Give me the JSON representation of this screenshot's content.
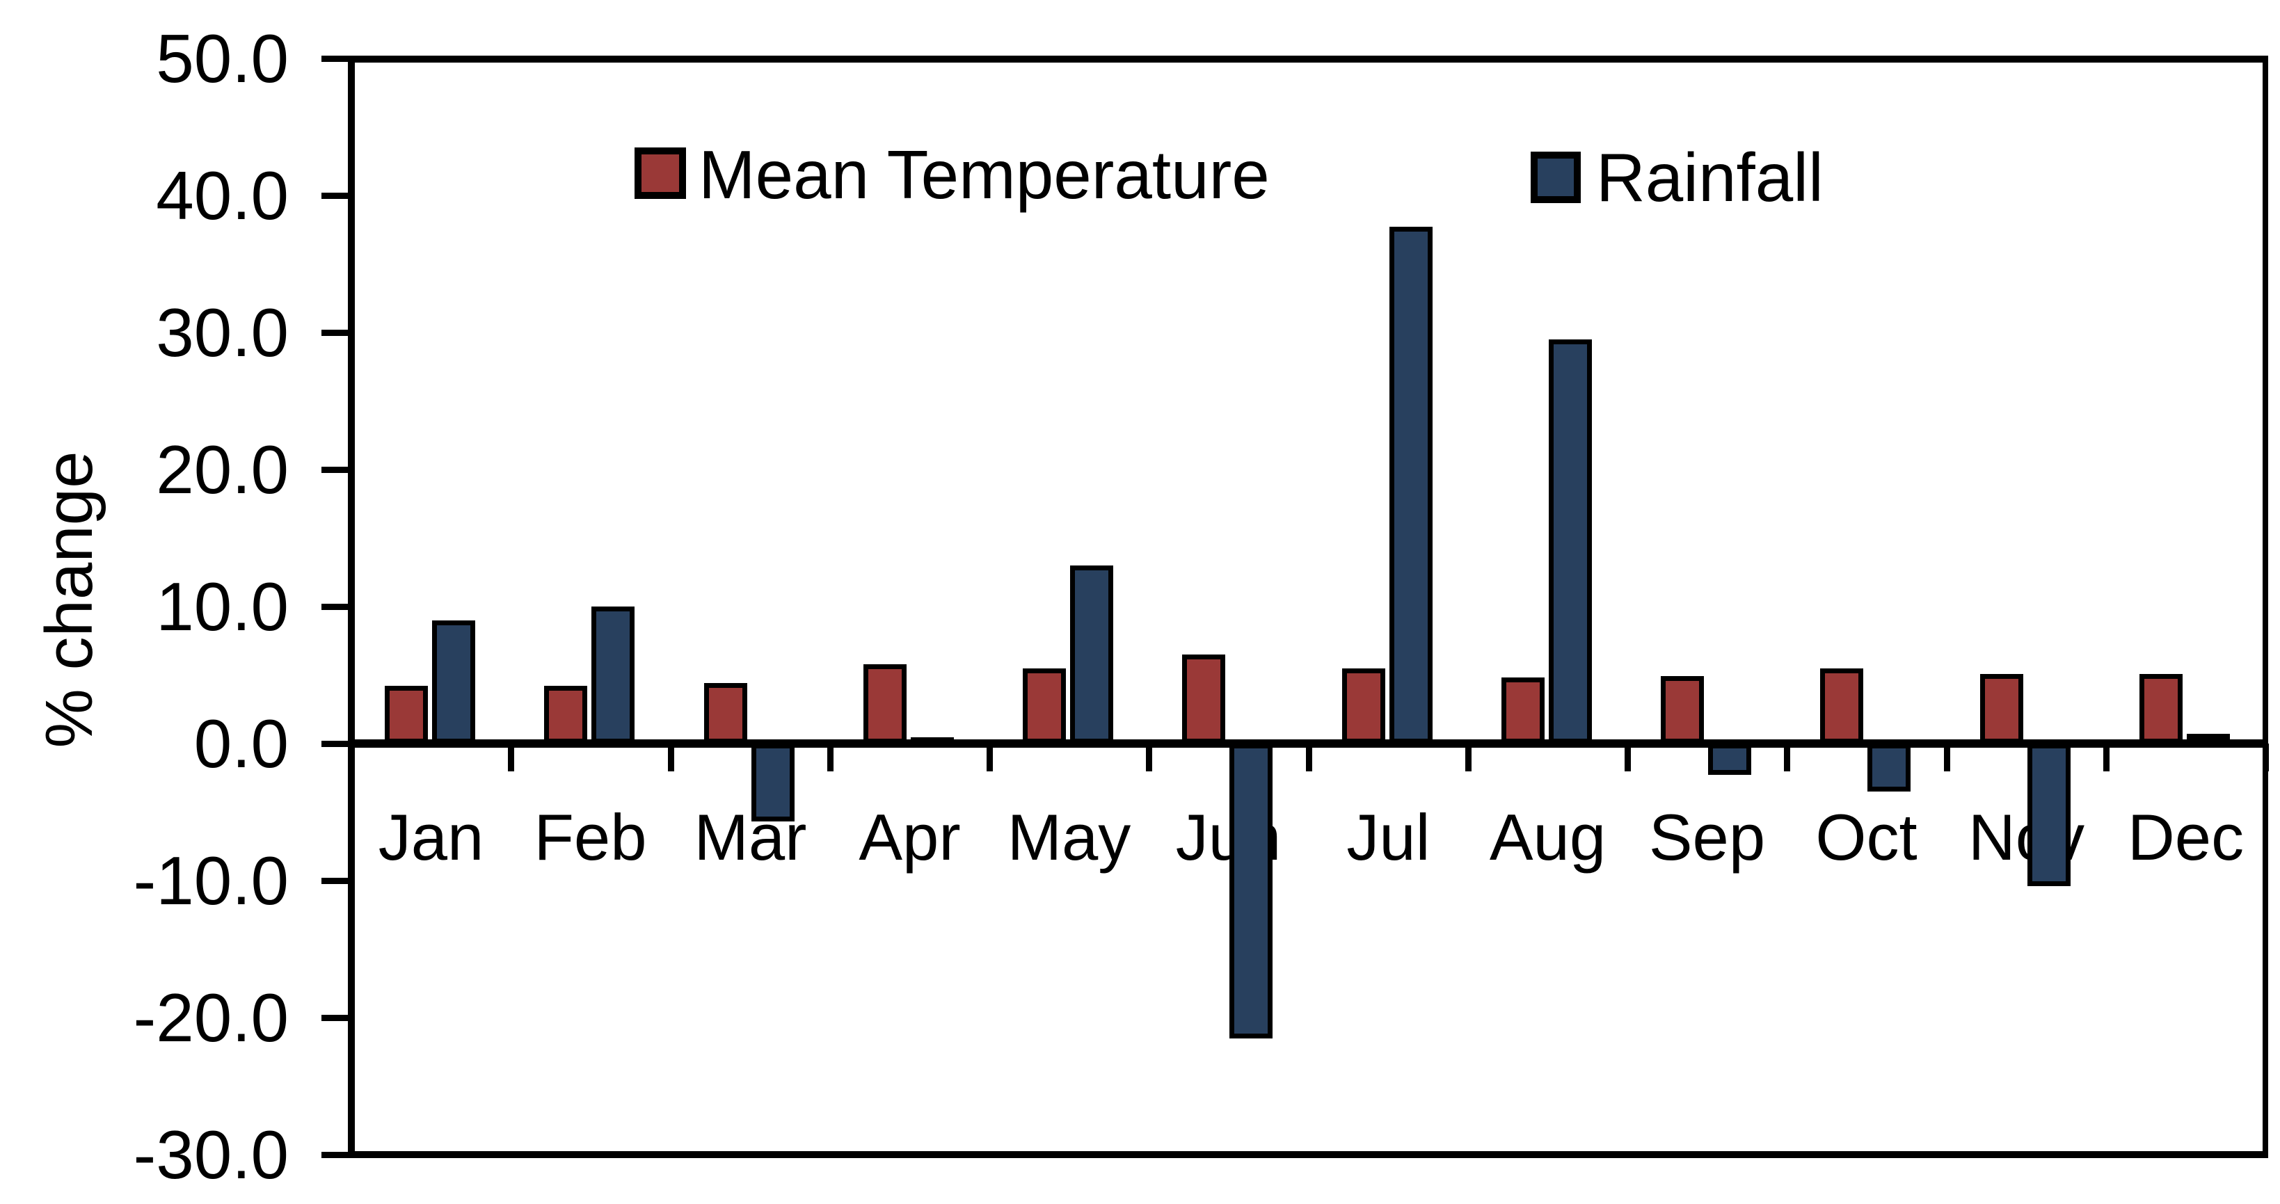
{
  "y_axis": {
    "label": "% change",
    "ticks": [
      "50.0",
      "40.0",
      "30.0",
      "20.0",
      "10.0",
      "0.0",
      "-10.0",
      "-20.0",
      "-30.0"
    ],
    "tick_values": [
      50,
      40,
      30,
      20,
      10,
      0,
      -10,
      -20,
      -30
    ]
  },
  "legend": {
    "items": [
      {
        "label": "Mean Temperature",
        "color": "#9a3937"
      },
      {
        "label": "Rainfall",
        "color": "#28405e"
      }
    ]
  },
  "chart_data": {
    "type": "bar",
    "title": "",
    "xlabel": "",
    "ylabel": "% change",
    "ylim": [
      -30,
      50
    ],
    "grid": false,
    "legend_position": "top-inside",
    "categories": [
      "Jan",
      "Feb",
      "Mar",
      "Apr",
      "May",
      "Jun",
      "Jul",
      "Aug",
      "Sep",
      "Oct",
      "Nov",
      "Dec"
    ],
    "series": [
      {
        "name": "Mean Temperature",
        "color": "#9a3937",
        "values": [
          4.2,
          4.2,
          4.4,
          5.8,
          5.5,
          6.5,
          5.5,
          4.8,
          4.9,
          5.5,
          5.1,
          5.1
        ]
      },
      {
        "name": "Rainfall",
        "color": "#28405e",
        "values": [
          9.0,
          10.0,
          -5.7,
          0.3,
          13.0,
          -21.5,
          37.7,
          29.5,
          -2.3,
          -3.5,
          -10.4,
          0.7
        ]
      }
    ]
  }
}
